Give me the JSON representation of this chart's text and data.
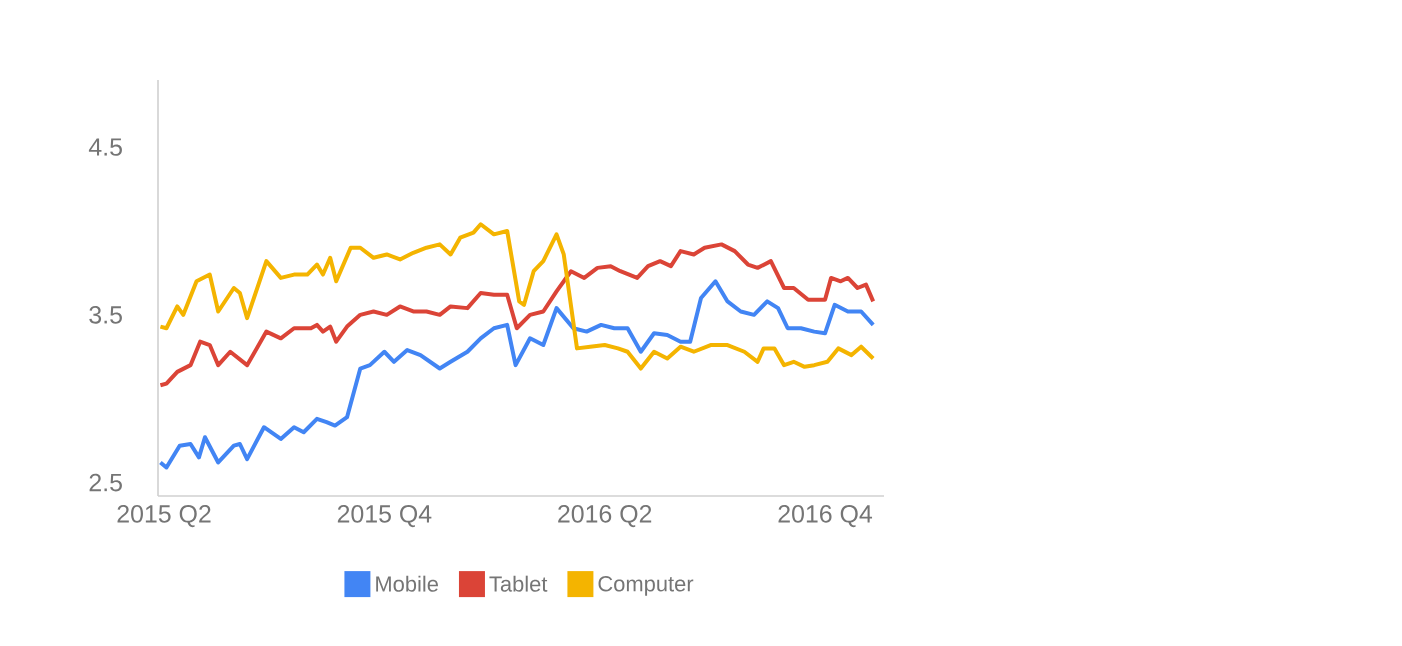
{
  "chart_data": {
    "type": "line",
    "xlim": [
      "2015-03-27",
      "2016-11-19"
    ],
    "ylim": [
      2.42,
      4.9
    ],
    "xticks": [
      {
        "value": "2015-04-01",
        "label": "2015 Q2"
      },
      {
        "value": "2015-10-01",
        "label": "2015 Q4"
      },
      {
        "value": "2016-04-01",
        "label": "2016 Q2"
      },
      {
        "value": "2016-10-01",
        "label": "2016 Q4"
      }
    ],
    "yticks": [
      2.5,
      3.5,
      4.5
    ],
    "legend": "bottom",
    "marker": "none",
    "line_style": "solid",
    "series": [
      {
        "name": "Mobile",
        "color": "#4285f4",
        "x": [
          "2015-03-29",
          "2015-04-03",
          "2015-04-14",
          "2015-04-23",
          "2015-04-30",
          "2015-05-05",
          "2015-05-16",
          "2015-05-29",
          "2015-06-03",
          "2015-06-09",
          "2015-06-23",
          "2015-07-07",
          "2015-07-18",
          "2015-07-26",
          "2015-08-06",
          "2015-08-14",
          "2015-08-21",
          "2015-08-31",
          "2015-09-11",
          "2015-09-19",
          "2015-10-01",
          "2015-10-09",
          "2015-10-20",
          "2015-10-31",
          "2015-11-16",
          "2015-11-25",
          "2015-12-09",
          "2015-12-20",
          "2015-12-31",
          "2016-01-11",
          "2016-01-18",
          "2016-01-30",
          "2016-02-10",
          "2016-02-21",
          "2016-03-06",
          "2016-03-17",
          "2016-03-29",
          "2016-04-09",
          "2016-04-20",
          "2016-05-01",
          "2016-05-12",
          "2016-05-23",
          "2016-06-03",
          "2016-06-11",
          "2016-06-20",
          "2016-07-02",
          "2016-07-12",
          "2016-07-23",
          "2016-08-03",
          "2016-08-14",
          "2016-08-23",
          "2016-08-31",
          "2016-09-11",
          "2016-09-22",
          "2016-10-01",
          "2016-10-09",
          "2016-10-20",
          "2016-10-31",
          "2016-11-10"
        ],
        "values": [
          2.62,
          2.59,
          2.72,
          2.73,
          2.65,
          2.77,
          2.62,
          2.72,
          2.73,
          2.64,
          2.83,
          2.76,
          2.83,
          2.8,
          2.88,
          2.86,
          2.84,
          2.89,
          3.18,
          3.2,
          3.28,
          3.22,
          3.29,
          3.26,
          3.18,
          3.22,
          3.28,
          3.36,
          3.42,
          3.44,
          3.2,
          3.36,
          3.32,
          3.54,
          3.42,
          3.4,
          3.44,
          3.42,
          3.42,
          3.28,
          3.39,
          3.38,
          3.34,
          3.34,
          3.6,
          3.7,
          3.58,
          3.52,
          3.5,
          3.58,
          3.54,
          3.42,
          3.42,
          3.4,
          3.39,
          3.56,
          3.52,
          3.52,
          3.44
        ]
      },
      {
        "name": "Tablet",
        "color": "#db4437",
        "x": [
          "2015-03-29",
          "2015-04-03",
          "2015-04-12",
          "2015-04-23",
          "2015-05-01",
          "2015-05-09",
          "2015-05-16",
          "2015-05-26",
          "2015-06-09",
          "2015-06-25",
          "2015-07-07",
          "2015-07-18",
          "2015-08-01",
          "2015-08-06",
          "2015-08-11",
          "2015-08-17",
          "2015-08-22",
          "2015-08-31",
          "2015-09-11",
          "2015-09-22",
          "2015-10-03",
          "2015-10-14",
          "2015-10-25",
          "2015-11-05",
          "2015-11-16",
          "2015-11-25",
          "2015-12-09",
          "2015-12-20",
          "2015-12-31",
          "2016-01-11",
          "2016-01-19",
          "2016-01-30",
          "2016-02-10",
          "2016-02-21",
          "2016-03-04",
          "2016-03-15",
          "2016-03-26",
          "2016-04-06",
          "2016-04-14",
          "2016-04-28",
          "2016-05-07",
          "2016-05-17",
          "2016-05-26",
          "2016-06-03",
          "2016-06-14",
          "2016-06-23",
          "2016-07-07",
          "2016-07-18",
          "2016-07-29",
          "2016-08-06",
          "2016-08-17",
          "2016-08-28",
          "2016-09-05",
          "2016-09-17",
          "2016-10-01",
          "2016-10-06",
          "2016-10-14",
          "2016-10-20",
          "2016-10-28",
          "2016-11-04",
          "2016-11-10"
        ],
        "values": [
          3.08,
          3.09,
          3.16,
          3.2,
          3.34,
          3.32,
          3.2,
          3.28,
          3.2,
          3.4,
          3.36,
          3.42,
          3.42,
          3.44,
          3.4,
          3.43,
          3.34,
          3.43,
          3.5,
          3.52,
          3.5,
          3.55,
          3.52,
          3.52,
          3.5,
          3.55,
          3.54,
          3.63,
          3.62,
          3.62,
          3.42,
          3.5,
          3.52,
          3.64,
          3.76,
          3.72,
          3.78,
          3.79,
          3.76,
          3.72,
          3.79,
          3.82,
          3.79,
          3.88,
          3.86,
          3.9,
          3.92,
          3.88,
          3.8,
          3.78,
          3.82,
          3.66,
          3.66,
          3.59,
          3.59,
          3.72,
          3.7,
          3.72,
          3.66,
          3.68,
          3.58
        ]
      },
      {
        "name": "Computer",
        "color": "#f4b400",
        "x": [
          "2015-03-29",
          "2015-04-03",
          "2015-04-12",
          "2015-04-17",
          "2015-04-28",
          "2015-05-09",
          "2015-05-16",
          "2015-05-29",
          "2015-06-03",
          "2015-06-09",
          "2015-06-25",
          "2015-07-07",
          "2015-07-18",
          "2015-07-29",
          "2015-08-06",
          "2015-08-11",
          "2015-08-17",
          "2015-08-22",
          "2015-09-03",
          "2015-09-11",
          "2015-09-22",
          "2015-10-03",
          "2015-10-14",
          "2015-10-25",
          "2015-11-05",
          "2015-11-16",
          "2015-11-25",
          "2015-12-03",
          "2015-12-14",
          "2015-12-20",
          "2015-12-31",
          "2016-01-11",
          "2016-01-21",
          "2016-01-25",
          "2016-02-02",
          "2016-02-10",
          "2016-02-21",
          "2016-02-27",
          "2016-03-09",
          "2016-03-20",
          "2016-04-01",
          "2016-04-12",
          "2016-04-20",
          "2016-05-01",
          "2016-05-12",
          "2016-05-23",
          "2016-06-03",
          "2016-06-14",
          "2016-06-28",
          "2016-07-12",
          "2016-07-26",
          "2016-08-06",
          "2016-08-11",
          "2016-08-20",
          "2016-08-28",
          "2016-09-05",
          "2016-09-14",
          "2016-09-22",
          "2016-10-03",
          "2016-10-12",
          "2016-10-23",
          "2016-10-31",
          "2016-11-10"
        ],
        "values": [
          3.43,
          3.42,
          3.55,
          3.5,
          3.7,
          3.74,
          3.52,
          3.66,
          3.63,
          3.48,
          3.82,
          3.72,
          3.74,
          3.74,
          3.8,
          3.74,
          3.84,
          3.7,
          3.9,
          3.9,
          3.84,
          3.86,
          3.83,
          3.87,
          3.9,
          3.92,
          3.86,
          3.96,
          3.99,
          4.04,
          3.98,
          4.0,
          3.58,
          3.56,
          3.76,
          3.82,
          3.98,
          3.86,
          3.3,
          3.31,
          3.32,
          3.3,
          3.28,
          3.18,
          3.28,
          3.24,
          3.31,
          3.28,
          3.32,
          3.32,
          3.28,
          3.22,
          3.3,
          3.3,
          3.2,
          3.22,
          3.19,
          3.2,
          3.22,
          3.3,
          3.26,
          3.31,
          3.24
        ]
      }
    ]
  }
}
